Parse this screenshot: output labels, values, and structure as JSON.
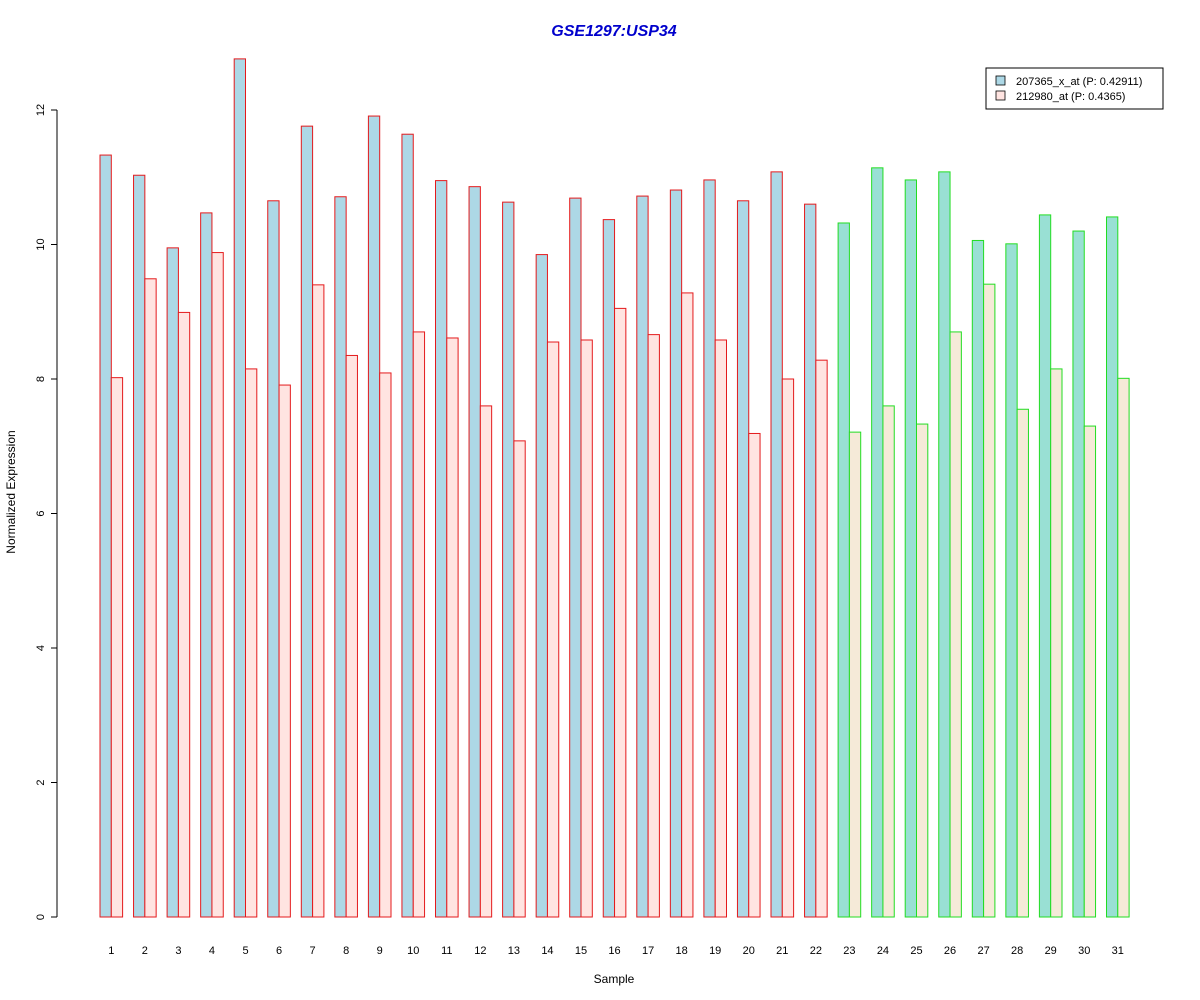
{
  "chart_data": {
    "type": "bar",
    "title": "GSE1297:USP34",
    "xlabel": "Sample",
    "ylabel": "Normalized Expression",
    "ylim": [
      0,
      12.8
    ],
    "yticks": [
      0,
      2,
      4,
      6,
      8,
      10,
      12
    ],
    "categories": [
      "1",
      "2",
      "3",
      "4",
      "5",
      "6",
      "7",
      "8",
      "9",
      "10",
      "11",
      "12",
      "13",
      "14",
      "15",
      "16",
      "17",
      "18",
      "19",
      "20",
      "21",
      "22",
      "23",
      "24",
      "25",
      "26",
      "27",
      "28",
      "29",
      "30",
      "31"
    ],
    "series": [
      {
        "name": "207365_x_at (P: 0.42911)",
        "values": [
          11.33,
          11.03,
          9.95,
          10.47,
          12.76,
          10.65,
          11.76,
          10.71,
          11.91,
          11.64,
          10.95,
          10.86,
          10.63,
          9.85,
          10.69,
          10.37,
          10.72,
          10.81,
          10.96,
          10.65,
          11.08,
          10.6,
          10.32,
          11.14,
          10.96,
          11.08,
          10.06,
          10.01,
          10.44,
          10.2,
          10.41
        ]
      },
      {
        "name": "212980_at (P: 0.4365)",
        "values": [
          8.02,
          9.49,
          8.99,
          9.88,
          8.15,
          7.91,
          9.4,
          8.35,
          8.09,
          8.7,
          8.61,
          7.6,
          7.08,
          8.55,
          8.58,
          9.05,
          8.66,
          9.28,
          8.58,
          7.19,
          8.0,
          8.28,
          7.21,
          7.6,
          7.33,
          8.7,
          9.41,
          7.55,
          8.15,
          7.3,
          8.01
        ]
      }
    ],
    "groups": [
      {
        "samples": [
          1,
          22
        ],
        "border_color": "#e41a1c",
        "fill_a": "#add8e6",
        "fill_b": "#ffe4e1"
      },
      {
        "samples": [
          23,
          31
        ],
        "border_color": "#22dd22",
        "fill_a": "#99e0d4",
        "fill_b": "#f5ead8"
      }
    ],
    "legend": {
      "position": "top-right",
      "entries": [
        "207365_x_at (P: 0.42911)",
        "212980_at (P: 0.4365)"
      ],
      "colors": [
        "#add8e6",
        "#ffe4e1"
      ]
    },
    "grid": false
  },
  "colors": {
    "title": "#0000cc",
    "axis": "#000000"
  }
}
